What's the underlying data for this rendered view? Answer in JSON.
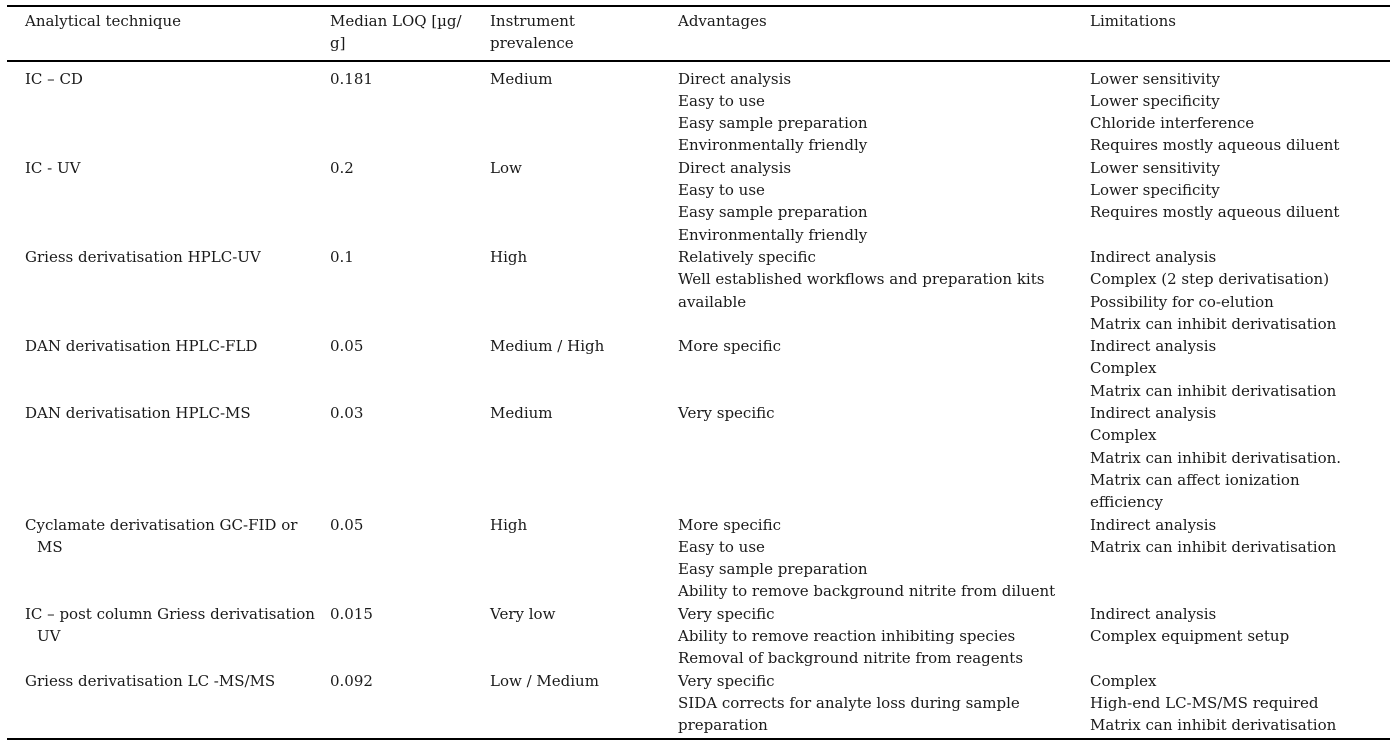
{
  "page": {
    "background": "#ffffff",
    "text_color": "#1a1a1a",
    "rule_color": "#000000"
  },
  "table": {
    "header": {
      "technique": [
        "Analytical technique"
      ],
      "loq": [
        "Median LOQ [µg/",
        "g]"
      ],
      "prevalence": [
        "Instrument",
        "prevalence"
      ],
      "advantages": [
        "Advantages"
      ],
      "limitations": [
        "Limitations"
      ]
    },
    "rows": [
      {
        "technique": [
          "IC – CD"
        ],
        "loq": [
          "0.181"
        ],
        "prevalence": [
          "Medium"
        ],
        "advantages": [
          "Direct analysis",
          "Easy to use",
          "Easy sample preparation",
          "Environmentally friendly"
        ],
        "limitations": [
          "Lower sensitivity",
          "Lower specificity",
          "Chloride interference",
          "Requires mostly aqueous diluent"
        ]
      },
      {
        "technique": [
          "IC - UV"
        ],
        "loq": [
          "0.2"
        ],
        "prevalence": [
          "Low"
        ],
        "advantages": [
          "Direct analysis",
          "Easy to use",
          "Easy sample preparation",
          "Environmentally friendly"
        ],
        "limitations": [
          "Lower sensitivity",
          "Lower specificity",
          "Requires mostly aqueous diluent"
        ]
      },
      {
        "technique": [
          "Griess derivatisation HPLC-UV"
        ],
        "loq": [
          "0.1"
        ],
        "prevalence": [
          "High"
        ],
        "advantages": [
          "Relatively specific",
          "Well established workflows and preparation kits",
          "available"
        ],
        "limitations": [
          "Indirect analysis",
          "Complex (2 step derivatisation)",
          "Possibility for co-elution",
          "Matrix can inhibit derivatisation"
        ]
      },
      {
        "technique": [
          "DAN derivatisation HPLC-FLD"
        ],
        "loq": [
          "0.05"
        ],
        "prevalence": [
          "Medium / High"
        ],
        "advantages": [
          "More specific"
        ],
        "limitations": [
          "Indirect analysis",
          "Complex",
          "Matrix can inhibit derivatisation"
        ]
      },
      {
        "technique": [
          "DAN derivatisation HPLC-MS"
        ],
        "loq": [
          "0.03"
        ],
        "prevalence": [
          "Medium"
        ],
        "advantages": [
          "Very specific"
        ],
        "limitations": [
          "Indirect analysis",
          "Complex",
          "Matrix can inhibit derivatisation.",
          "Matrix can affect ionization",
          "efficiency"
        ]
      },
      {
        "technique": [
          "Cyclamate derivatisation GC-FID or",
          "MS"
        ],
        "loq": [
          "0.05"
        ],
        "prevalence": [
          "High"
        ],
        "advantages": [
          "More specific",
          "Easy to use",
          "Easy sample preparation",
          "Ability to remove background nitrite from diluent"
        ],
        "limitations": [
          "Indirect analysis",
          "Matrix can inhibit derivatisation"
        ]
      },
      {
        "technique": [
          "IC – post column Griess derivatisation",
          "UV"
        ],
        "loq": [
          "0.015"
        ],
        "prevalence": [
          "Very low"
        ],
        "advantages": [
          "Very specific",
          "Ability to remove reaction inhibiting species",
          "Removal of background nitrite from reagents"
        ],
        "limitations": [
          "Indirect analysis",
          "Complex equipment setup"
        ]
      },
      {
        "technique": [
          "Griess derivatisation LC -MS/MS"
        ],
        "loq": [
          "0.092"
        ],
        "prevalence": [
          "Low / Medium"
        ],
        "advantages": [
          "Very specific",
          "SIDA corrects for analyte loss during sample",
          "preparation"
        ],
        "limitations": [
          "Complex",
          "High-end LC-MS/MS required",
          "Matrix can inhibit derivatisation"
        ]
      }
    ]
  }
}
